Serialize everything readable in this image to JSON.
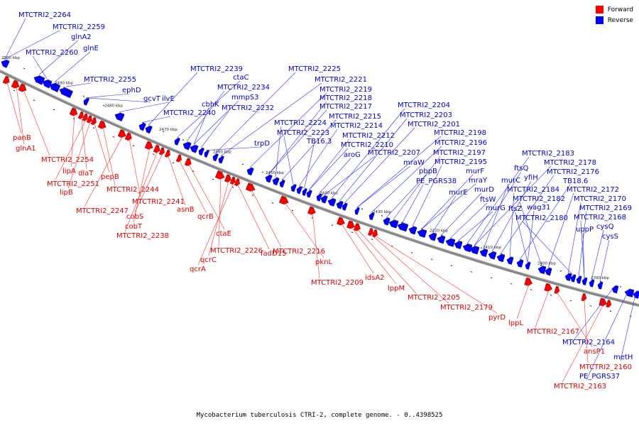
{
  "legend": {
    "forward": "Forward",
    "reverse": "Reverse",
    "forward_color": "#ff0000",
    "reverse_color": "#0000ff"
  },
  "caption": "Mycobacterium tuberculosis CTRI-2, complete genome. - 0..4398525",
  "ticks": [
    "2500 kbp",
    "2490 kbp",
    "2480 kbp",
    "2470 kbp",
    "2460 kbp",
    "2450 kbp",
    "2440 kbp",
    "2430 kbp",
    "2420 kbp",
    "2410 kbp",
    "2400 kbp",
    "2390 kbp"
  ],
  "reverse_labels": [
    "MTCTRI2_2264",
    "MTCTRI2_2259",
    "glnA2",
    "MTCTRI2_2260",
    "glnE",
    "MTCTRI2_2255",
    "ephD",
    "gcvT",
    "ilvE",
    "MTCTRI2_2240",
    "MTCTRI2_2239",
    "ctaC",
    "MTCTRI2_2234",
    "mmpS3",
    "cbhK",
    "MTCTRI2_2232",
    "trpD",
    "MTCTRI2_2225",
    "MTCTRI2_2221",
    "MTCTRI2_2219",
    "MTCTRI2_2218",
    "MTCTRI2_2217",
    "MTCTRI2_2224",
    "MTCTRI2_2215",
    "MTCTRI2_2223",
    "MTCTRI2_2214",
    "TB16.3",
    "MTCTRI2_2212",
    "MTCTRI2_2210",
    "aroG",
    "MTCTRI2_2207",
    "MTCTRI2_2204",
    "MTCTRI2_2203",
    "MTCTRI2_2201",
    "mraW",
    "MTCTRI2_2198",
    "MTCTRI2_2196",
    "pbpB",
    "MTCTRI2_2197",
    "PE_PGRS38",
    "MTCTRI2_2195",
    "murF",
    "mraY",
    "murE",
    "murD",
    "ftsW",
    "murG",
    "MTCTRI2_2183",
    "ftsQ",
    "MTCTRI2_2178",
    "murC",
    "yfiH",
    "MTCTRI2_2176",
    "MTCTRI2_2184",
    "TB18.6",
    "ftsZ",
    "wag31",
    "MTCTRI2_2182",
    "MTCTRI2_2172",
    "MTCTRI2_2170",
    "MTCTRI2_2180",
    "MTCTRI2_2169",
    "MTCTRI2_2168",
    "uppP",
    "cysQ",
    "cysS",
    "MTCTRI2_2164",
    "PE_PGRS37",
    "metH"
  ],
  "forward_labels": [
    "panB",
    "glnA1",
    "MTCTRI2_2254",
    "lipA",
    "dlaT",
    "MTCTRI2_2251",
    "lipB",
    "pepB",
    "MTCTRI2_2244",
    "MTCTRI2_2247",
    "MTCTRI2_2241",
    "cobT",
    "MTCTRI2_2238",
    "cobS",
    "asnB",
    "qcrB",
    "ctaE",
    "MTCTRI2_2226",
    "qcrC",
    "qcrA",
    "fadD15",
    "MTCTRI2_2216",
    "pknL",
    "MTCTRI2_2209",
    "idsA2",
    "lppM",
    "MTCTRI2_2205",
    "MTCTRI2_2179",
    "pyrD",
    "lppL",
    "MTCTRI2_2167",
    "ansP1",
    "MTCTRI2_2160",
    "MTCTRI2_2163"
  ]
}
